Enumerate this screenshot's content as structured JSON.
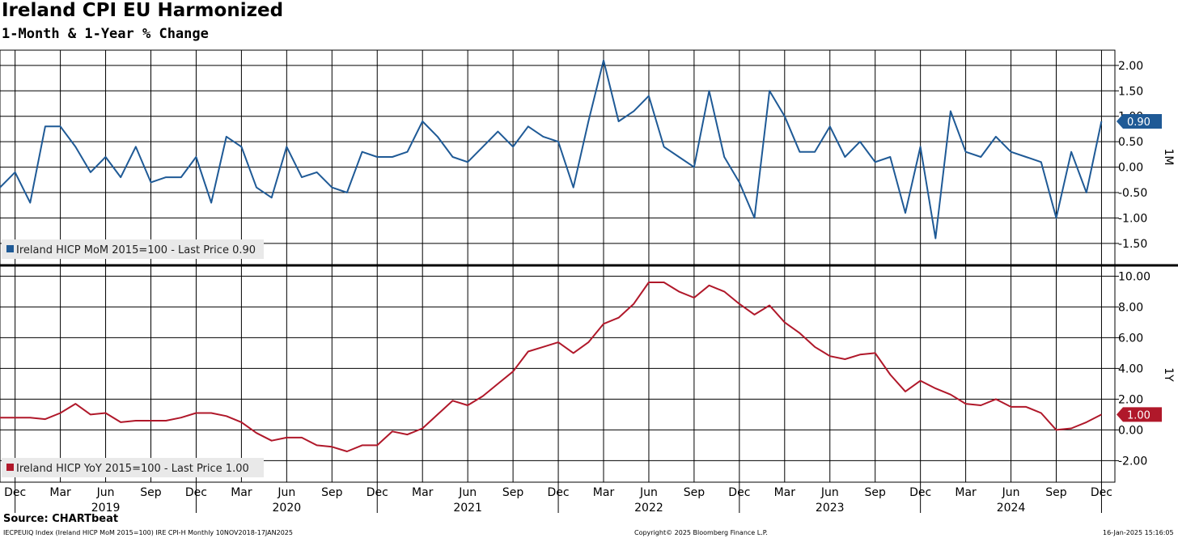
{
  "title": "Ireland CPI EU Harmonized",
  "subtitle": "1-Month & 1-Year % Change",
  "source": "Source: CHARTbeat",
  "footer": {
    "left": "IECPEUIQ Index (Ireland HICP MoM 2015=100) IRE CPI-H  Monthly 10NOV2018-17JAN2025",
    "center": "Copyright© 2025 Bloomberg Finance L.P.",
    "right": "16-Jan-2025 15:16:05"
  },
  "colors": {
    "mom": "#1f5a96",
    "yoy": "#b0182a",
    "grid": "#000000"
  },
  "chart_data": [
    {
      "type": "line",
      "panel_label": "1M",
      "legend": "Ireland HICP MoM 2015=100 - Last Price 0.90",
      "last_value_label": "0.90",
      "ylim": [
        -1.9,
        2.3
      ],
      "yticks": [
        "2.00",
        "1.50",
        "1.00",
        "0.50",
        "0.00",
        "-0.50",
        "-1.00",
        "-1.50"
      ],
      "ytick_values": [
        2.0,
        1.5,
        1.0,
        0.5,
        0.0,
        -0.5,
        -1.0,
        -1.5
      ],
      "start": "2018-11",
      "values": [
        -0.4,
        -0.1,
        -0.7,
        0.8,
        0.8,
        0.4,
        -0.1,
        0.2,
        -0.2,
        0.4,
        -0.3,
        -0.2,
        -0.2,
        0.2,
        -0.7,
        0.6,
        0.4,
        -0.4,
        -0.6,
        0.4,
        -0.2,
        -0.1,
        -0.4,
        -0.5,
        0.3,
        0.2,
        0.2,
        0.3,
        0.9,
        0.6,
        0.2,
        0.1,
        0.4,
        0.7,
        0.4,
        0.8,
        0.6,
        0.5,
        -0.4,
        0.9,
        2.1,
        0.9,
        1.1,
        1.4,
        0.4,
        0.2,
        0.0,
        1.5,
        0.2,
        -0.3,
        -1.0,
        1.5,
        1.0,
        0.3,
        0.3,
        0.8,
        0.2,
        0.5,
        0.1,
        0.2,
        -0.9,
        0.4,
        -1.4,
        1.1,
        0.3,
        0.2,
        0.6,
        0.3,
        0.2,
        0.1,
        -1.0,
        0.3,
        -0.5,
        0.9
      ]
    },
    {
      "type": "line",
      "panel_label": "1Y",
      "legend": "Ireland HICP YoY 2015=100 - Last Price 1.00",
      "last_value_label": "1.00",
      "ylim": [
        -3.4,
        10.6
      ],
      "yticks": [
        "10.00",
        "8.00",
        "6.00",
        "4.00",
        "2.00",
        "0.00",
        "-2.00"
      ],
      "ytick_values": [
        10,
        8,
        6,
        4,
        2,
        0,
        -2
      ],
      "start": "2018-11",
      "values": [
        0.8,
        0.8,
        0.8,
        0.7,
        1.1,
        1.7,
        1.0,
        1.1,
        0.5,
        0.6,
        0.6,
        0.6,
        0.8,
        1.1,
        1.1,
        0.9,
        0.5,
        -0.2,
        -0.7,
        -0.5,
        -0.5,
        -1.0,
        -1.1,
        -1.4,
        -1.0,
        -1.0,
        -0.1,
        -0.3,
        0.1,
        1.0,
        1.9,
        1.6,
        2.2,
        3.0,
        3.8,
        5.1,
        5.4,
        5.7,
        5.0,
        5.7,
        6.9,
        7.3,
        8.2,
        9.6,
        9.6,
        9.0,
        8.6,
        9.4,
        9.0,
        8.2,
        7.5,
        8.1,
        7.0,
        6.3,
        5.4,
        4.8,
        4.6,
        4.9,
        5.0,
        3.6,
        2.5,
        3.2,
        2.7,
        2.3,
        1.7,
        1.6,
        2.0,
        1.5,
        1.5,
        1.1,
        0.0,
        0.1,
        0.5,
        1.0
      ]
    }
  ],
  "x_axis": {
    "month_ticks": [
      "Dec",
      "Mar",
      "Jun",
      "Sep",
      "Dec",
      "Mar",
      "Jun",
      "Sep",
      "Dec",
      "Mar",
      "Jun",
      "Sep",
      "Dec",
      "Mar",
      "Jun",
      "Sep",
      "Dec",
      "Mar",
      "Jun",
      "Sep",
      "Dec",
      "Mar",
      "Jun",
      "Sep",
      "Dec"
    ],
    "month_tick_index": [
      1,
      4,
      7,
      10,
      13,
      16,
      19,
      22,
      25,
      28,
      31,
      34,
      37,
      40,
      43,
      46,
      49,
      52,
      55,
      58,
      61,
      64,
      67,
      70,
      73
    ],
    "years": [
      "2019",
      "2020",
      "2021",
      "2022",
      "2023",
      "2024"
    ],
    "year_center_index": [
      7,
      19,
      31,
      43,
      55,
      67
    ],
    "year_divider_index": [
      1,
      13,
      25,
      37,
      49,
      61,
      73
    ]
  }
}
